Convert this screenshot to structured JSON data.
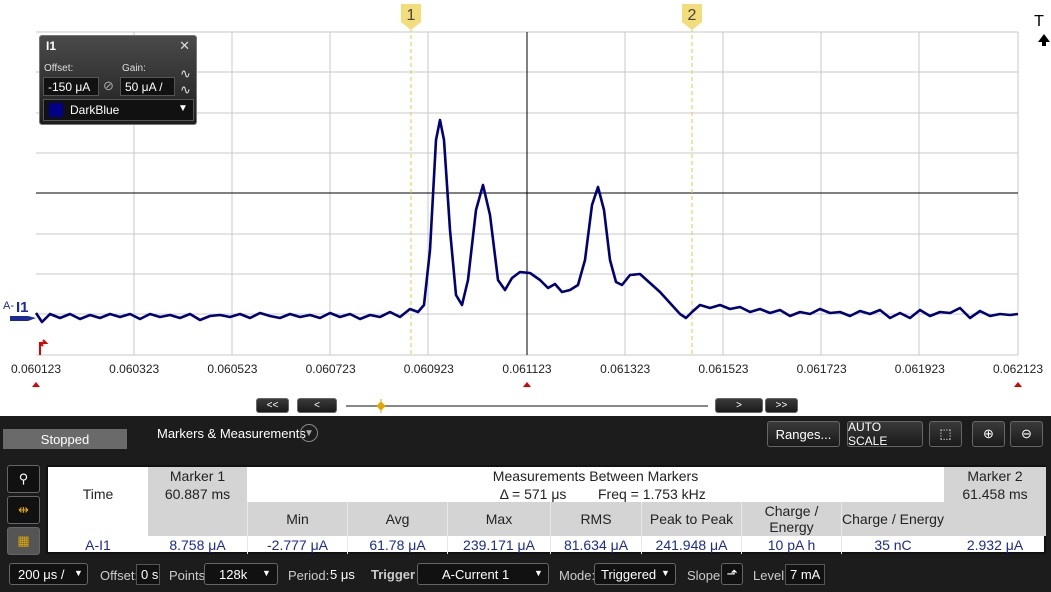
{
  "plot": {
    "marker_labels": [
      "1",
      "2"
    ],
    "trigger_label": "T",
    "channel_prefix": "A-",
    "channel": "I1",
    "x_ticks": [
      "0.060123",
      "0.060323",
      "0.060523",
      "0.060723",
      "0.060923",
      "0.061123",
      "0.061323",
      "0.061523",
      "0.061723",
      "0.061923",
      "0.062123"
    ]
  },
  "channel_panel": {
    "title": "I1",
    "offset_label": "Offset:",
    "offset": "-150 μA",
    "gain_label": "Gain:",
    "gain": "50 μA /",
    "color": "DarkBlue"
  },
  "scroll_buttons": [
    "<<",
    "<",
    ">",
    ">>"
  ],
  "toolbar": {
    "status": "Stopped",
    "tab": "Markers & Measurements",
    "ranges": "Ranges...",
    "autoscale": "AUTO SCALE"
  },
  "table": {
    "headers": [
      "Marker 1",
      "Measurements Between Markers",
      "Marker 2"
    ],
    "time_row": {
      "label": "Time",
      "marker1": "60.887 ms",
      "delta": "Δ = 571 μs",
      "freq": "Freq = 1.753 kHz",
      "marker2": "61.458 ms"
    },
    "columns": [
      "Min",
      "Avg",
      "Max",
      "RMS",
      "Peak to Peak",
      "Charge / Energy",
      "Charge / Energy"
    ],
    "row": {
      "label": "A-I1",
      "marker1": "8.758 μA",
      "values": [
        "-2.777 μA",
        "61.78 μA",
        "239.171 μA",
        "81.634 μA",
        "241.948 μA",
        "10 pA h",
        "35 nC"
      ],
      "marker2": "2.932 μA"
    }
  },
  "bottom_bar": {
    "timebase": "200 μs /",
    "offset_label": "Offset:",
    "offset": "0 s",
    "points_label": "Points:",
    "points": "128k",
    "period_label": "Period:",
    "period": "5 μs",
    "trigger_label": "Trigger",
    "trigger": "A-Current 1",
    "mode_label": "Mode:",
    "mode": "Triggered",
    "slope_label": "Slope:",
    "level_label": "Level:",
    "level": "7 mA"
  }
}
